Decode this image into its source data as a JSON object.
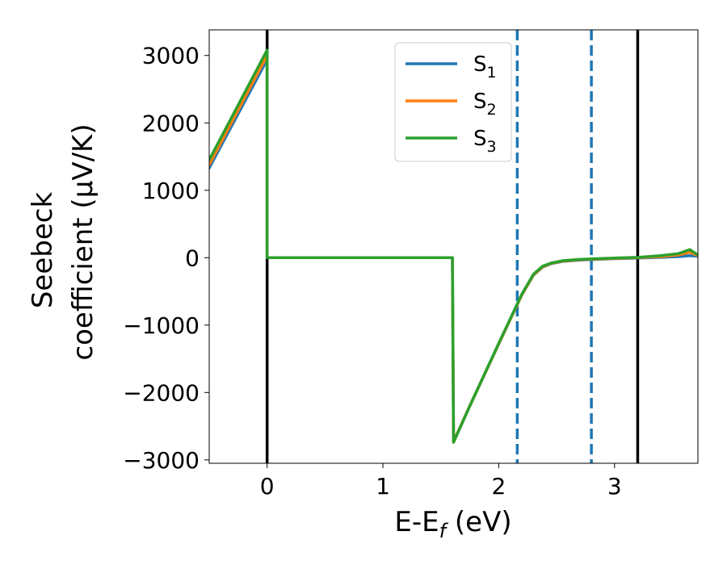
{
  "chart_data": {
    "type": "line",
    "title": "",
    "xlabel": "E-E$_f$ (eV)",
    "xlabel_parts": [
      "E-E",
      "f",
      " (eV)"
    ],
    "ylabel": "Seebeck coefficient  ($\\mu$V/K)",
    "ylabel_line1": "Seebeck",
    "ylabel_line2": "coefficient  (μV/K)",
    "xlim": [
      -0.5,
      3.72
    ],
    "ylim": [
      -3050,
      3380
    ],
    "xticks": [
      0,
      1,
      2,
      3
    ],
    "xtick_labels": [
      "0",
      "1",
      "2",
      "3"
    ],
    "yticks": [
      -3000,
      -2000,
      -1000,
      0,
      1000,
      2000,
      3000
    ],
    "ytick_labels": [
      "−3000",
      "−2000",
      "−1000",
      "0",
      "1000",
      "2000",
      "3000"
    ],
    "grid": false,
    "legend": "top-center",
    "series": [
      {
        "name": "S1",
        "name_base": "S",
        "name_sub": "1",
        "color": "#1f77b4",
        "x": [
          -0.5,
          0.0,
          0.0,
          1.6,
          1.61,
          1.75,
          2.0,
          2.2,
          2.3,
          2.38,
          2.45,
          2.55,
          2.7,
          2.85,
          3.0,
          3.2,
          3.4,
          3.55,
          3.65,
          3.72
        ],
        "y": [
          1330,
          2940,
          0,
          0,
          -2730,
          -2200,
          -1280,
          -550,
          -260,
          -140,
          -90,
          -55,
          -35,
          -25,
          -15,
          -5,
          5,
          15,
          30,
          20
        ]
      },
      {
        "name": "S2",
        "name_base": "S",
        "name_sub": "2",
        "color": "#ff7f0e",
        "x": [
          -0.5,
          0.0,
          0.0,
          1.6,
          1.61,
          1.75,
          2.0,
          2.2,
          2.3,
          2.38,
          2.45,
          2.55,
          2.7,
          2.85,
          3.0,
          3.2,
          3.4,
          3.55,
          3.65,
          3.72
        ],
        "y": [
          1380,
          3000,
          0,
          0,
          -2730,
          -2200,
          -1280,
          -550,
          -255,
          -135,
          -85,
          -50,
          -30,
          -20,
          -10,
          0,
          15,
          40,
          80,
          30
        ]
      },
      {
        "name": "S3",
        "name_base": "S",
        "name_sub": "3",
        "color": "#2ca02c",
        "x": [
          -0.5,
          0.0,
          0.0,
          1.6,
          1.61,
          1.75,
          2.0,
          2.2,
          2.3,
          2.38,
          2.45,
          2.55,
          2.7,
          2.85,
          3.0,
          3.2,
          3.4,
          3.55,
          3.65,
          3.72
        ],
        "y": [
          1450,
          3080,
          0,
          0,
          -2740,
          -2200,
          -1270,
          -540,
          -245,
          -125,
          -80,
          -45,
          -25,
          -15,
          -5,
          5,
          30,
          60,
          120,
          40
        ]
      }
    ],
    "vlines": [
      {
        "x": 0.0,
        "style": "solid",
        "color": "#000000"
      },
      {
        "x": 3.2,
        "style": "solid",
        "color": "#000000"
      },
      {
        "x": 2.16,
        "style": "dashed",
        "color": "#1f77b4"
      },
      {
        "x": 2.8,
        "style": "dashed",
        "color": "#1f77b4"
      }
    ]
  }
}
